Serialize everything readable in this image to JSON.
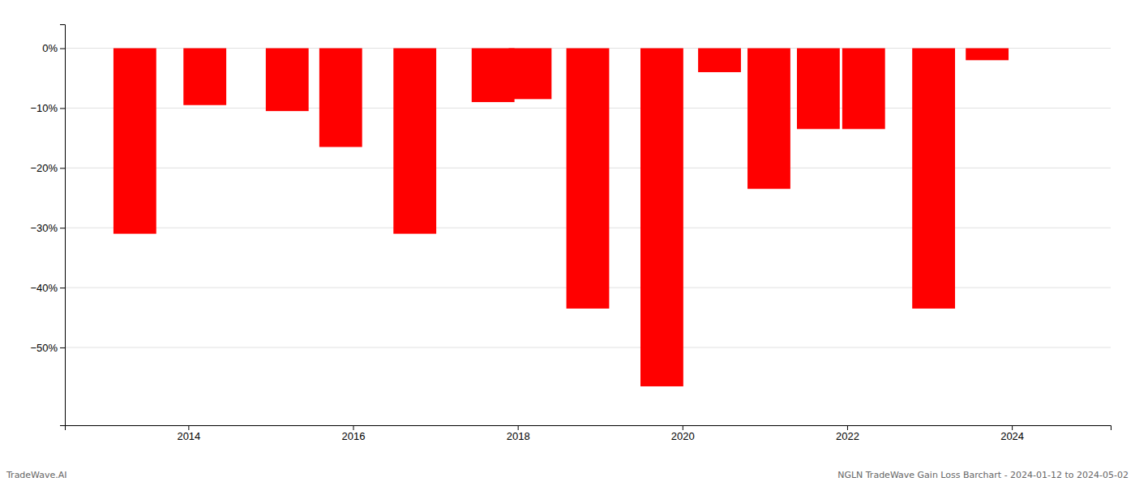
{
  "chart_data": {
    "type": "bar",
    "x": [
      2013.35,
      2014.2,
      2015.2,
      2015.85,
      2016.75,
      2017.7,
      2018.15,
      2018.85,
      2019.75,
      2020.45,
      2021.05,
      2021.65,
      2022.2,
      2023.05,
      2023.7
    ],
    "values": [
      -31.0,
      -9.5,
      -10.5,
      -16.5,
      -31.0,
      -9.0,
      -8.5,
      -43.5,
      -56.5,
      -4.0,
      -23.5,
      -13.5,
      -13.5,
      -43.5,
      -2.0
    ],
    "color": "#ff0000",
    "xlim": [
      2012.5,
      2025.2
    ],
    "xticks": [
      2014,
      2016,
      2018,
      2020,
      2022,
      2024
    ],
    "ylim": [
      -63,
      4
    ],
    "yticks": [
      {
        "value": 0,
        "label": "0%"
      },
      {
        "value": -10,
        "label": "−10%"
      },
      {
        "value": -20,
        "label": "−20%"
      },
      {
        "value": -30,
        "label": "−30%"
      },
      {
        "value": -40,
        "label": "−40%"
      },
      {
        "value": -50,
        "label": "−50%"
      }
    ],
    "grid": true,
    "annotations": [
      "TradeWave.AI",
      "NGLN TradeWave Gain Loss Barchart - 2024-01-12 to 2024-05-02"
    ]
  }
}
